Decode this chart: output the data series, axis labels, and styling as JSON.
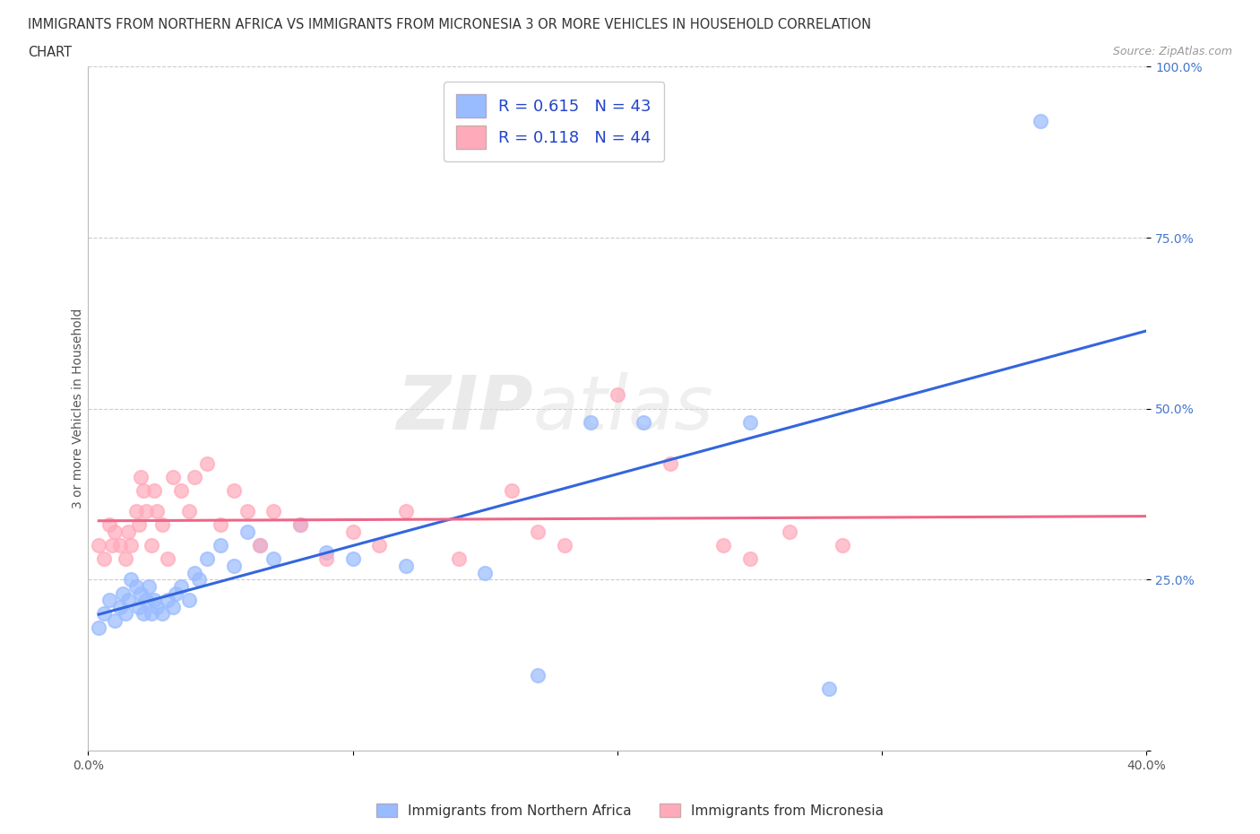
{
  "title_line1": "IMMIGRANTS FROM NORTHERN AFRICA VS IMMIGRANTS FROM MICRONESIA 3 OR MORE VEHICLES IN HOUSEHOLD CORRELATION",
  "title_line2": "CHART",
  "source": "Source: ZipAtlas.com",
  "ylabel": "3 or more Vehicles in Household",
  "xlim": [
    0.0,
    0.4
  ],
  "ylim": [
    0.0,
    1.0
  ],
  "blue_R": 0.615,
  "blue_N": 43,
  "pink_R": 0.118,
  "pink_N": 44,
  "blue_dot_color": "#99bbff",
  "pink_dot_color": "#ffaabb",
  "blue_line_color": "#3366dd",
  "pink_line_color": "#ee6688",
  "blue_label": "Immigrants from Northern Africa",
  "pink_label": "Immigrants from Micronesia",
  "watermark_zip": "ZIP",
  "watermark_atlas": "atlas",
  "background_color": "#ffffff",
  "blue_scatter_x": [
    0.004,
    0.006,
    0.008,
    0.01,
    0.012,
    0.013,
    0.014,
    0.015,
    0.016,
    0.018,
    0.019,
    0.02,
    0.021,
    0.022,
    0.023,
    0.024,
    0.025,
    0.026,
    0.028,
    0.03,
    0.032,
    0.033,
    0.035,
    0.038,
    0.04,
    0.042,
    0.045,
    0.05,
    0.055,
    0.06,
    0.065,
    0.07,
    0.08,
    0.09,
    0.1,
    0.12,
    0.15,
    0.17,
    0.19,
    0.21,
    0.25,
    0.28,
    0.36
  ],
  "blue_scatter_y": [
    0.18,
    0.2,
    0.22,
    0.19,
    0.21,
    0.23,
    0.2,
    0.22,
    0.25,
    0.24,
    0.21,
    0.23,
    0.2,
    0.22,
    0.24,
    0.2,
    0.22,
    0.21,
    0.2,
    0.22,
    0.21,
    0.23,
    0.24,
    0.22,
    0.26,
    0.25,
    0.28,
    0.3,
    0.27,
    0.32,
    0.3,
    0.28,
    0.33,
    0.29,
    0.28,
    0.27,
    0.26,
    0.11,
    0.48,
    0.48,
    0.48,
    0.09,
    0.92
  ],
  "pink_scatter_x": [
    0.004,
    0.006,
    0.008,
    0.009,
    0.01,
    0.012,
    0.014,
    0.015,
    0.016,
    0.018,
    0.019,
    0.02,
    0.021,
    0.022,
    0.024,
    0.025,
    0.026,
    0.028,
    0.03,
    0.032,
    0.035,
    0.038,
    0.04,
    0.045,
    0.05,
    0.055,
    0.06,
    0.065,
    0.07,
    0.08,
    0.09,
    0.1,
    0.11,
    0.12,
    0.14,
    0.16,
    0.17,
    0.18,
    0.2,
    0.22,
    0.24,
    0.25,
    0.265,
    0.285
  ],
  "pink_scatter_y": [
    0.3,
    0.28,
    0.33,
    0.3,
    0.32,
    0.3,
    0.28,
    0.32,
    0.3,
    0.35,
    0.33,
    0.4,
    0.38,
    0.35,
    0.3,
    0.38,
    0.35,
    0.33,
    0.28,
    0.4,
    0.38,
    0.35,
    0.4,
    0.42,
    0.33,
    0.38,
    0.35,
    0.3,
    0.35,
    0.33,
    0.28,
    0.32,
    0.3,
    0.35,
    0.28,
    0.38,
    0.32,
    0.3,
    0.52,
    0.42,
    0.3,
    0.28,
    0.32,
    0.3
  ]
}
